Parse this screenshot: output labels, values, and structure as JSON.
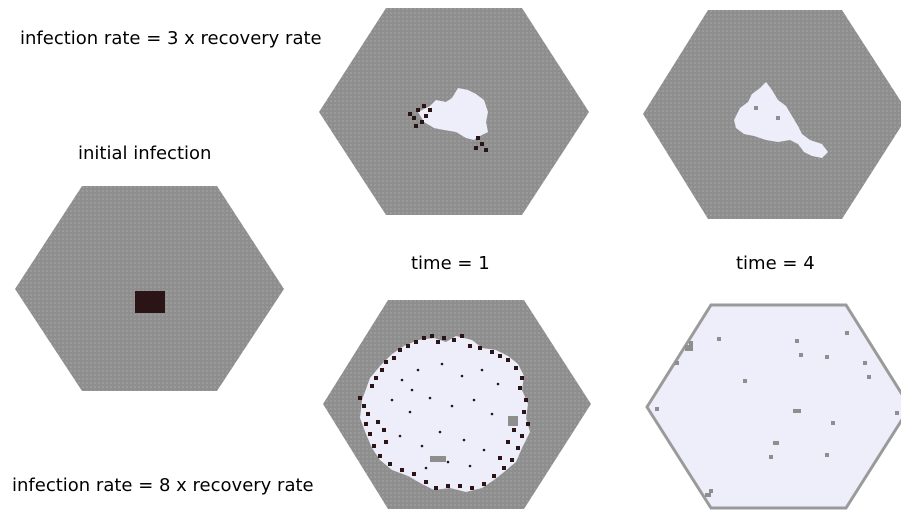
{
  "labels": {
    "top_rate": "infection rate = 3 x recovery rate",
    "bottom_rate": "infection rate = 8 x recovery rate",
    "initial": "initial infection",
    "time1": "time = 1",
    "time4": "time = 4"
  },
  "colors": {
    "susceptible": "#8e8e8e",
    "recovered": "#eeeefb",
    "infected": "#2b1416",
    "hex_edge": "#9a9a9a",
    "text": "#000000"
  }
}
